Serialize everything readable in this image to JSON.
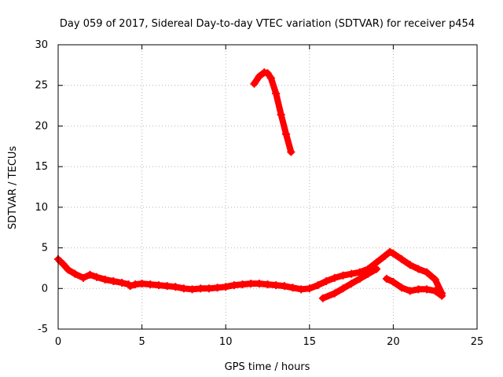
{
  "chart_data": {
    "type": "scatter",
    "title": "Day 059 of 2017, Sidereal Day-to-day VTEC variation (SDTVAR) for receiver p454",
    "xlabel": "GPS time / hours",
    "ylabel": "SDTVAR / TECUs",
    "xlim": [
      0,
      25
    ],
    "ylim": [
      -5,
      30
    ],
    "xticks": [
      0,
      5,
      10,
      15,
      20,
      25
    ],
    "xtick_labels": [
      "0",
      "5",
      "10",
      "15",
      "20",
      "25"
    ],
    "yticks": [
      -5,
      0,
      5,
      10,
      15,
      20,
      25,
      30
    ],
    "ytick_labels": [
      "-5",
      "0",
      "5",
      "10",
      "15",
      "20",
      "25",
      "30"
    ],
    "grid": true,
    "legend": "none",
    "series": [
      {
        "name": "track-main",
        "color": "#ff0000",
        "x": [
          0.0,
          0.3,
          0.6,
          1.0,
          1.5,
          1.9,
          2.3,
          2.8,
          3.3,
          3.8,
          4.2,
          4.3,
          4.6,
          5.0,
          5.5,
          6.0,
          6.5,
          7.0,
          7.5,
          8.0,
          8.5,
          9.0,
          9.5,
          10.0,
          10.5,
          11.0,
          11.5,
          12.0,
          12.5,
          13.0,
          13.5,
          14.0,
          14.5,
          15.0,
          15.5,
          16.0,
          16.5,
          17.0,
          17.5,
          18.0,
          18.5,
          19.0,
          19.5,
          19.8,
          20.0,
          20.5,
          21.0,
          21.5,
          22.0,
          22.5,
          22.9
        ],
        "y": [
          3.6,
          3.0,
          2.3,
          1.8,
          1.3,
          1.7,
          1.4,
          1.1,
          0.9,
          0.7,
          0.5,
          0.3,
          0.5,
          0.6,
          0.5,
          0.4,
          0.3,
          0.2,
          0.0,
          -0.1,
          0.0,
          0.0,
          0.1,
          0.2,
          0.4,
          0.5,
          0.6,
          0.6,
          0.5,
          0.4,
          0.3,
          0.1,
          -0.1,
          0.0,
          0.4,
          0.9,
          1.3,
          1.6,
          1.8,
          2.0,
          2.4,
          3.2,
          4.0,
          4.5,
          4.3,
          3.6,
          2.9,
          2.4,
          2.0,
          1.1,
          -0.6
        ]
      },
      {
        "name": "track-lower-branch",
        "color": "#ff0000",
        "x": [
          15.8,
          16.5,
          17.0,
          17.5,
          18.0,
          18.5,
          19.0
        ],
        "y": [
          -1.2,
          -0.6,
          0.0,
          0.6,
          1.2,
          1.8,
          2.4
        ]
      },
      {
        "name": "track-late-branch",
        "color": "#ff0000",
        "x": [
          19.6,
          20.0,
          20.5,
          21.0,
          21.5,
          22.0,
          22.5,
          22.9
        ],
        "y": [
          1.2,
          0.8,
          0.1,
          -0.3,
          -0.1,
          -0.1,
          -0.3,
          -0.9
        ]
      },
      {
        "name": "track-upper-arc",
        "color": "#ff0000",
        "x": [
          11.7,
          12.0,
          12.3,
          12.5,
          12.7,
          13.0,
          13.3,
          13.6,
          13.9
        ],
        "y": [
          25.2,
          26.1,
          26.6,
          26.5,
          25.9,
          24.0,
          21.4,
          19.0,
          16.8
        ]
      }
    ]
  }
}
